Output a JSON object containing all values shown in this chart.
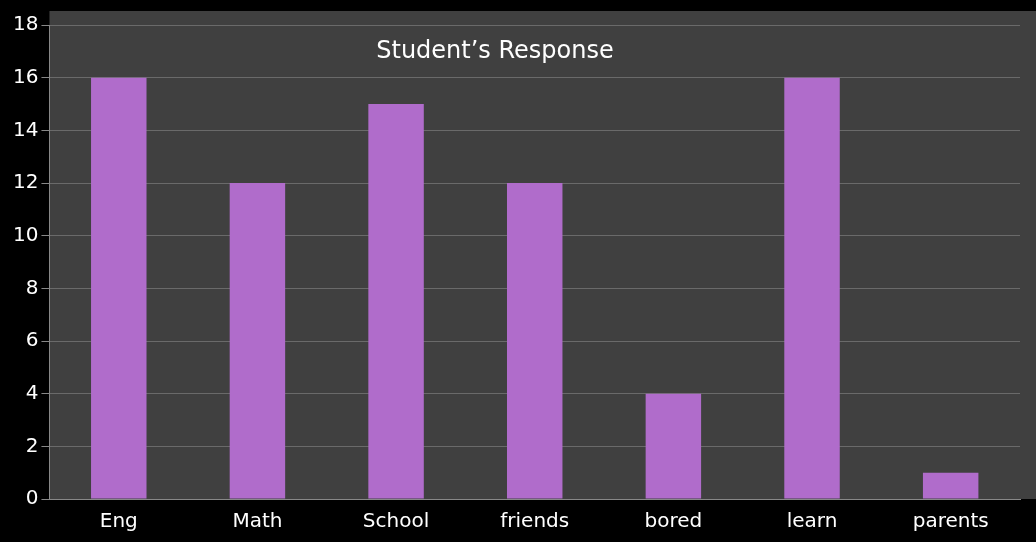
{
  "chart_data": {
    "type": "bar",
    "title": "Student’s Response",
    "categories": [
      "Eng",
      "Math",
      "School",
      "friends",
      "bored",
      "learn",
      "parents"
    ],
    "values": [
      16,
      12,
      15,
      12,
      4,
      16,
      1
    ],
    "color": "#b06ccb",
    "ylim": [
      0,
      18
    ],
    "yticks": [
      0,
      2,
      4,
      6,
      8,
      10,
      12,
      14,
      16,
      18
    ],
    "grid": "y"
  }
}
